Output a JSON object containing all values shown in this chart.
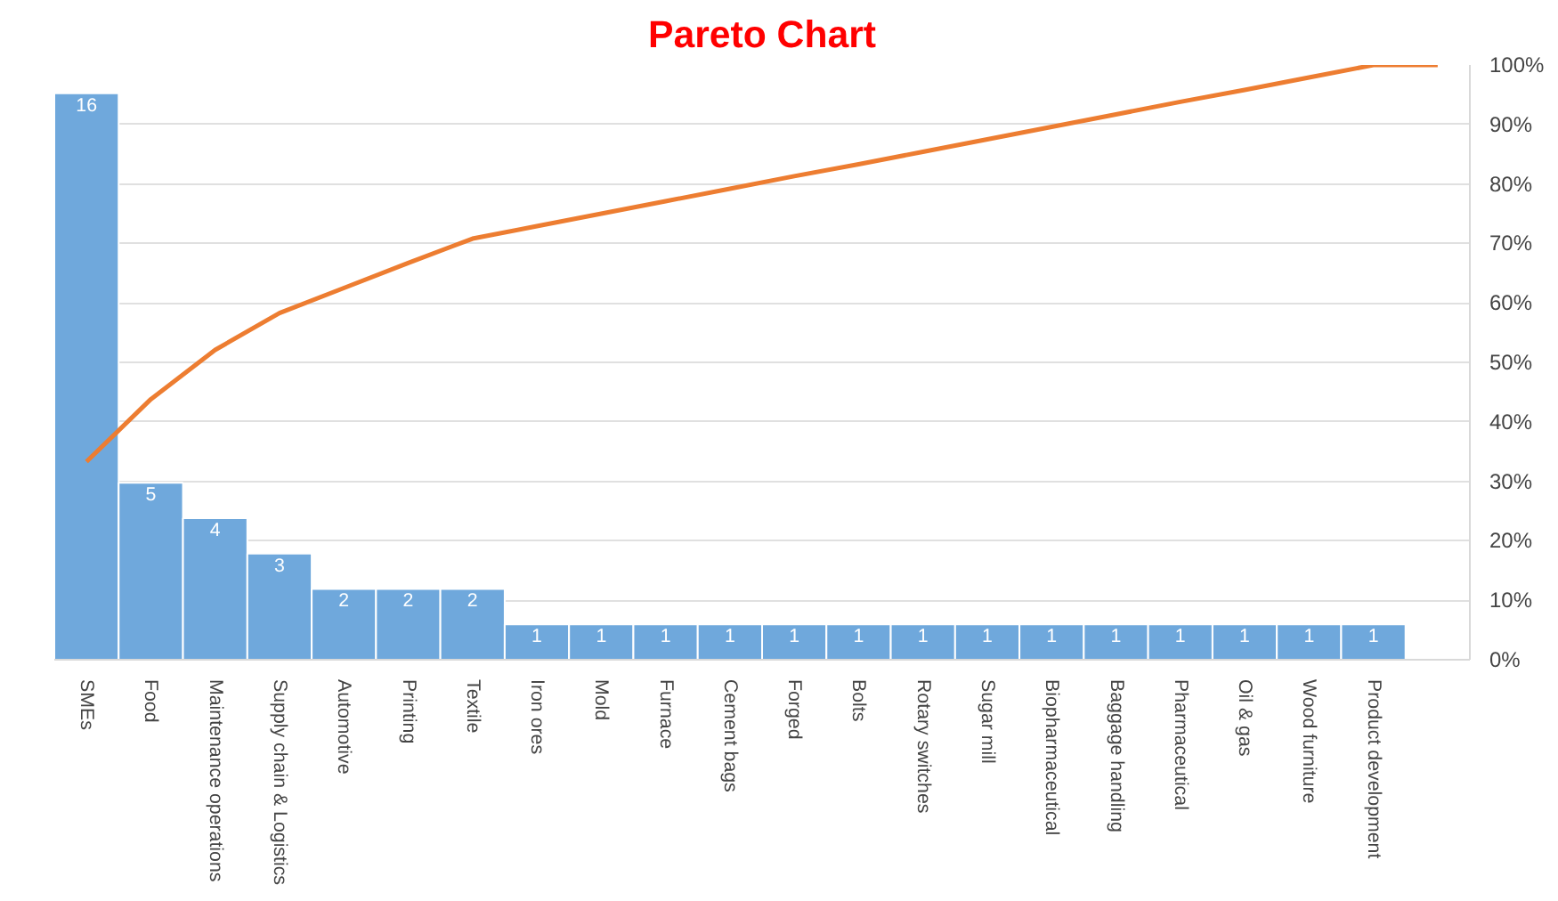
{
  "chart_data": {
    "type": "bar",
    "title": "Pareto Chart",
    "categories": [
      "SMEs",
      "Food",
      "Maintenance operations",
      "Supply chain & Logistics",
      "Automotive",
      "Printing",
      "Textile",
      "Iron ores",
      "Mold",
      "Furnace",
      "Cement bags",
      "Forged",
      "Bolts",
      "Rotary switches",
      "Sugar mill",
      "Biopharmaceutical",
      "Baggage handling",
      "Pharmaceutical",
      "Oil & gas",
      "Wood furniture",
      "Product development",
      null
    ],
    "series": [
      {
        "color": "#6fa8dc",
        "values": [
          16,
          5,
          4,
          3,
          2,
          2,
          2,
          1,
          1,
          1,
          1,
          1,
          1,
          1,
          1,
          1,
          1,
          1,
          1,
          1,
          1,
          null
        ],
        "value_labels": [
          "16",
          "5",
          "4",
          "3",
          "2",
          "2",
          "2",
          "1",
          "1",
          "1",
          "1",
          "1",
          "1",
          "1",
          "1",
          "1",
          "1",
          "1",
          "1",
          "1",
          "1",
          null
        ]
      },
      {
        "type": "line",
        "axis": "y2",
        "color": "#ed7d31",
        "values": [
          33.3,
          43.8,
          52.1,
          58.3,
          62.5,
          66.7,
          70.8,
          72.9,
          75.0,
          77.1,
          79.2,
          81.3,
          83.3,
          85.4,
          87.5,
          89.6,
          91.7,
          93.8,
          95.8,
          97.9,
          100,
          100
        ]
      }
    ],
    "y2lim": [
      0,
      100
    ],
    "y2ticks": [
      {
        "value": 0,
        "label": "0%"
      },
      {
        "value": 10,
        "label": "10%"
      },
      {
        "value": 20,
        "label": "20%"
      },
      {
        "value": 30,
        "label": "30%"
      },
      {
        "value": 40,
        "label": "40%"
      },
      {
        "value": 50,
        "label": "50%"
      },
      {
        "value": 60,
        "label": "60%"
      },
      {
        "value": 70,
        "label": "70%"
      },
      {
        "value": 80,
        "label": "80%"
      },
      {
        "value": 90,
        "label": "90%"
      },
      {
        "value": 100,
        "label": "100%"
      }
    ],
    "grid": "y"
  }
}
